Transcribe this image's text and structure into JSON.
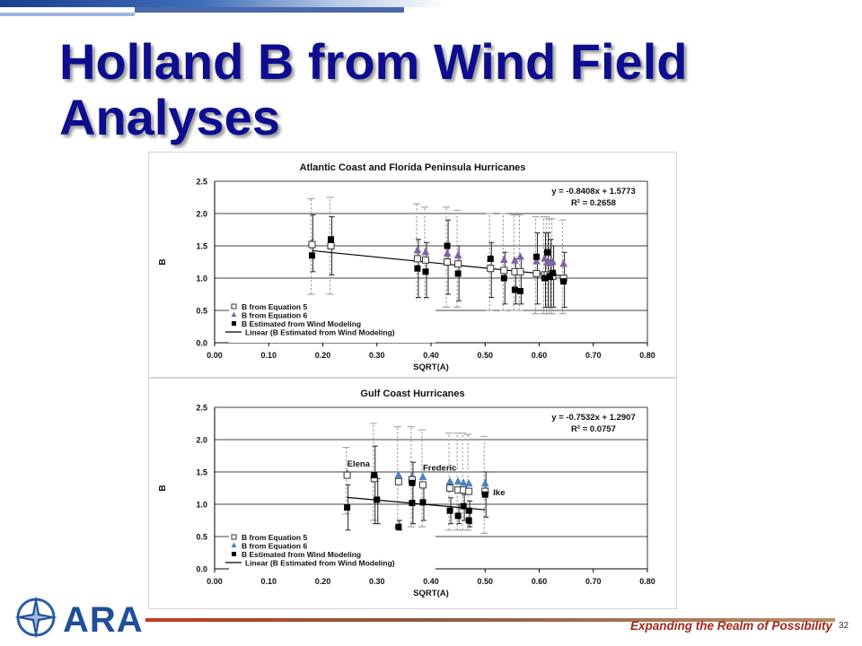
{
  "slide": {
    "title": "Holland B from Wind Field Analyses",
    "tagline": "Expanding the Realm of Possibility",
    "page_number": "32",
    "logo_text": "ARA"
  },
  "colors": {
    "title": "#0d0d8f",
    "accent_red": "#a0271a",
    "eq5_marker": "#ffffff",
    "eq6_marker_atlantic": "#8064a2",
    "eq6_marker_gulf": "#4f81bd",
    "estimated_marker": "#000000",
    "error_bar": "#a6a6a6"
  },
  "chart_data": [
    {
      "type": "scatter",
      "title": "Atlantic Coast and Florida Peninsula Hurricanes",
      "xlabel": "SQRT(A)",
      "ylabel": "B",
      "xlim": [
        0,
        0.8
      ],
      "ylim": [
        0,
        2.5
      ],
      "x_ticks": [
        "0.00",
        "0.10",
        "0.20",
        "0.30",
        "0.40",
        "0.50",
        "0.60",
        "0.70",
        "0.80"
      ],
      "y_ticks": [
        "0.0",
        "0.5",
        "1.0",
        "1.5",
        "2.0",
        "2.5"
      ],
      "grid": "horizontal",
      "legend_position": "bottom-left",
      "legend": [
        "B from Equation 5",
        "B from Equation 6",
        "B Estimated from Wind Modeling",
        "Linear (B Estimated from Wind Modeling)"
      ],
      "equation": "y = -0.8408x + 1.5773",
      "r_squared": "R² = 0.2658",
      "trendline": {
        "slope": -0.8408,
        "intercept": 1.5773,
        "x_range": [
          0.18,
          0.64
        ]
      },
      "series": [
        {
          "name": "B from Equation 5",
          "marker": "open-square",
          "points": [
            {
              "x": 0.18,
              "y": 1.52,
              "low": 0.75,
              "high": 2.23
            },
            {
              "x": 0.215,
              "y": 1.5,
              "low": 0.75,
              "high": 2.25
            },
            {
              "x": 0.375,
              "y": 1.3,
              "low": 0.55,
              "high": 2.15
            },
            {
              "x": 0.39,
              "y": 1.28,
              "low": 0.55,
              "high": 2.1
            },
            {
              "x": 0.43,
              "y": 1.25,
              "low": 0.55,
              "high": 2.1
            },
            {
              "x": 0.45,
              "y": 1.22,
              "low": 0.55,
              "high": 2.05
            },
            {
              "x": 0.51,
              "y": 1.15,
              "low": 0.5,
              "high": 2.0
            },
            {
              "x": 0.535,
              "y": 1.12,
              "low": 0.5,
              "high": 2.0
            },
            {
              "x": 0.555,
              "y": 1.1,
              "low": 0.5,
              "high": 1.98
            },
            {
              "x": 0.565,
              "y": 1.1,
              "low": 0.5,
              "high": 1.98
            },
            {
              "x": 0.595,
              "y": 1.07,
              "low": 0.45,
              "high": 1.95
            },
            {
              "x": 0.61,
              "y": 1.05,
              "low": 0.45,
              "high": 1.95
            },
            {
              "x": 0.615,
              "y": 1.05,
              "low": 0.45,
              "high": 1.95
            },
            {
              "x": 0.62,
              "y": 1.03,
              "low": 0.45,
              "high": 1.92
            },
            {
              "x": 0.625,
              "y": 1.03,
              "low": 0.45,
              "high": 1.92
            },
            {
              "x": 0.645,
              "y": 1.0,
              "low": 0.45,
              "high": 1.9
            }
          ]
        },
        {
          "name": "B from Equation 6",
          "marker": "triangle",
          "points": [
            {
              "x": 0.18,
              "y": 1.55
            },
            {
              "x": 0.215,
              "y": 1.52
            },
            {
              "x": 0.375,
              "y": 1.43
            },
            {
              "x": 0.39,
              "y": 1.4
            },
            {
              "x": 0.43,
              "y": 1.38
            },
            {
              "x": 0.45,
              "y": 1.35
            },
            {
              "x": 0.51,
              "y": 1.3
            },
            {
              "x": 0.535,
              "y": 1.28
            },
            {
              "x": 0.555,
              "y": 1.27
            },
            {
              "x": 0.565,
              "y": 1.33
            },
            {
              "x": 0.595,
              "y": 1.26
            },
            {
              "x": 0.61,
              "y": 1.3
            },
            {
              "x": 0.615,
              "y": 1.24
            },
            {
              "x": 0.62,
              "y": 1.23
            },
            {
              "x": 0.625,
              "y": 1.25
            },
            {
              "x": 0.645,
              "y": 1.22
            }
          ]
        },
        {
          "name": "B Estimated from Wind Modeling",
          "marker": "filled-square",
          "points": [
            {
              "x": 0.18,
              "y": 1.35,
              "low": 1.1,
              "high": 1.98
            },
            {
              "x": 0.215,
              "y": 1.6,
              "low": 1.05,
              "high": 1.95
            },
            {
              "x": 0.375,
              "y": 1.15,
              "low": 0.7,
              "high": 1.6
            },
            {
              "x": 0.39,
              "y": 1.1,
              "low": 0.7,
              "high": 1.55
            },
            {
              "x": 0.43,
              "y": 1.5,
              "low": 0.75,
              "high": 1.9
            },
            {
              "x": 0.45,
              "y": 1.07,
              "low": 0.65,
              "high": 1.5
            },
            {
              "x": 0.51,
              "y": 1.3,
              "low": 0.7,
              "high": 1.55
            },
            {
              "x": 0.535,
              "y": 1.0,
              "low": 0.6,
              "high": 1.4
            },
            {
              "x": 0.555,
              "y": 0.82,
              "low": 0.6,
              "high": 1.3
            },
            {
              "x": 0.565,
              "y": 0.8,
              "low": 0.6,
              "high": 1.3
            },
            {
              "x": 0.595,
              "y": 1.33,
              "low": 0.6,
              "high": 1.7
            },
            {
              "x": 0.61,
              "y": 1.0,
              "low": 0.55,
              "high": 1.7
            },
            {
              "x": 0.615,
              "y": 1.4,
              "low": 0.55,
              "high": 1.7
            },
            {
              "x": 0.62,
              "y": 1.02,
              "low": 0.55,
              "high": 1.6
            },
            {
              "x": 0.625,
              "y": 1.08,
              "low": 0.55,
              "high": 1.5
            },
            {
              "x": 0.645,
              "y": 0.95,
              "low": 0.55,
              "high": 1.4
            }
          ]
        }
      ]
    },
    {
      "type": "scatter",
      "title": "Gulf Coast Hurricanes",
      "xlabel": "SQRT(A)",
      "ylabel": "B",
      "xlim": [
        0,
        0.8
      ],
      "ylim": [
        0,
        2.5
      ],
      "x_ticks": [
        "0.00",
        "0.10",
        "0.20",
        "0.30",
        "0.40",
        "0.50",
        "0.60",
        "0.70",
        "0.80"
      ],
      "y_ticks": [
        "0.0",
        "0.5",
        "1.0",
        "1.5",
        "2.0",
        "2.5"
      ],
      "grid": "horizontal",
      "legend_position": "bottom-left",
      "legend": [
        "B from Equation 5",
        "B from Equation 6",
        "B Estimated from Wind Modeling",
        "Linear (B Estimated from Wind Modeling)"
      ],
      "equation": "y = -0.7532x + 1.2907",
      "r_squared": "R² = 0.0757",
      "trendline": {
        "slope": -0.7532,
        "intercept": 1.2907,
        "x_range": [
          0.245,
          0.5
        ]
      },
      "annotations": [
        {
          "text": "Elena",
          "x": 0.245,
          "y": 1.58
        },
        {
          "text": "Frederic",
          "x": 0.385,
          "y": 1.52
        },
        {
          "text": "Ike",
          "x": 0.515,
          "y": 1.14
        }
      ],
      "series": [
        {
          "name": "B from Equation 5",
          "marker": "open-square",
          "points": [
            {
              "x": 0.245,
              "y": 1.45,
              "low": 0.85,
              "high": 1.88
            },
            {
              "x": 0.295,
              "y": 1.4,
              "low": 0.75,
              "high": 2.25
            },
            {
              "x": 0.34,
              "y": 1.35,
              "low": 0.65,
              "high": 2.2
            },
            {
              "x": 0.365,
              "y": 1.38,
              "low": 0.65,
              "high": 2.2
            },
            {
              "x": 0.385,
              "y": 1.3,
              "low": 0.65,
              "high": 2.15
            },
            {
              "x": 0.435,
              "y": 1.25,
              "low": 0.6,
              "high": 2.1
            },
            {
              "x": 0.45,
              "y": 1.22,
              "low": 0.6,
              "high": 2.1
            },
            {
              "x": 0.46,
              "y": 1.22,
              "low": 0.6,
              "high": 2.1
            },
            {
              "x": 0.47,
              "y": 1.2,
              "low": 0.6,
              "high": 2.08
            },
            {
              "x": 0.5,
              "y": 1.2,
              "low": 0.55,
              "high": 2.05
            }
          ]
        },
        {
          "name": "B from Equation 6",
          "marker": "triangle",
          "points": [
            {
              "x": 0.245,
              "y": 1.48
            },
            {
              "x": 0.295,
              "y": 1.44
            },
            {
              "x": 0.34,
              "y": 1.45
            },
            {
              "x": 0.365,
              "y": 1.43
            },
            {
              "x": 0.385,
              "y": 1.42
            },
            {
              "x": 0.435,
              "y": 1.35
            },
            {
              "x": 0.45,
              "y": 1.35
            },
            {
              "x": 0.46,
              "y": 1.33
            },
            {
              "x": 0.47,
              "y": 1.32
            },
            {
              "x": 0.5,
              "y": 1.32
            }
          ]
        },
        {
          "name": "B Estimated from Wind Modeling",
          "marker": "filled-square",
          "points": [
            {
              "x": 0.245,
              "y": 0.95,
              "low": 0.6,
              "high": 1.3
            },
            {
              "x": 0.295,
              "y": 1.45,
              "low": 0.7,
              "high": 1.9
            },
            {
              "x": 0.3,
              "y": 1.07,
              "low": 0.7,
              "high": 1.4
            },
            {
              "x": 0.34,
              "y": 0.65,
              "low": 0.6,
              "high": 0.75
            },
            {
              "x": 0.365,
              "y": 1.33,
              "low": 0.7,
              "high": 1.65
            },
            {
              "x": 0.365,
              "y": 1.02,
              "low": 0.7,
              "high": 1.3
            },
            {
              "x": 0.385,
              "y": 1.03,
              "low": 0.75,
              "high": 1.3
            },
            {
              "x": 0.435,
              "y": 0.9,
              "low": 0.7,
              "high": 1.1
            },
            {
              "x": 0.45,
              "y": 0.82,
              "low": 0.7,
              "high": 1.0
            },
            {
              "x": 0.46,
              "y": 0.97,
              "low": 0.75,
              "high": 1.15
            },
            {
              "x": 0.47,
              "y": 0.75,
              "low": 0.65,
              "high": 0.9
            },
            {
              "x": 0.47,
              "y": 0.9,
              "low": 0.7,
              "high": 1.05
            },
            {
              "x": 0.5,
              "y": 1.15,
              "low": 0.8,
              "high": 1.5
            }
          ]
        }
      ]
    }
  ]
}
